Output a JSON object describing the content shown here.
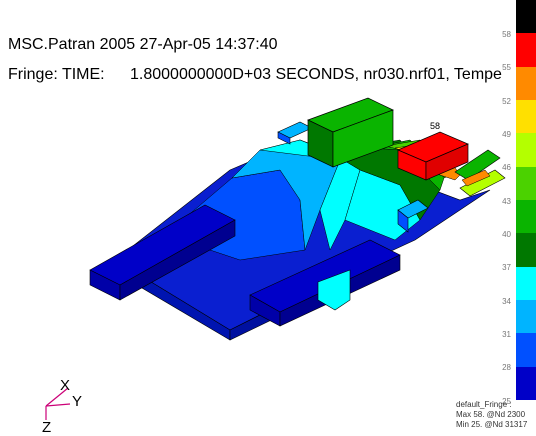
{
  "header": {
    "title": "MSC.Patran 2005 27-Apr-05 14:37:40",
    "fringe_label": "Fringe: TIME:",
    "fringe_value": "1.8000000000D+03 SECONDS, nr030.nrf01, Tempe"
  },
  "model": {
    "max_marker": "58"
  },
  "axes": {
    "x": "X",
    "y": "Y",
    "z": "Z"
  },
  "colorbar": {
    "labels": [
      "58",
      "55",
      "52",
      "49",
      "46",
      "43",
      "40",
      "37",
      "34",
      "31",
      "28",
      "25"
    ],
    "colors": [
      "#000000",
      "#ff0000",
      "#ff8a00",
      "#ffe000",
      "#b4ff00",
      "#4bd200",
      "#0ab400",
      "#007800",
      "#00ffff",
      "#00b4ff",
      "#0050ff",
      "#0000c8"
    ]
  },
  "legend": {
    "name": "default_Fringe :",
    "max": "Max 58. @Nd 2300",
    "min": "Min 25. @Nd 31317"
  }
}
